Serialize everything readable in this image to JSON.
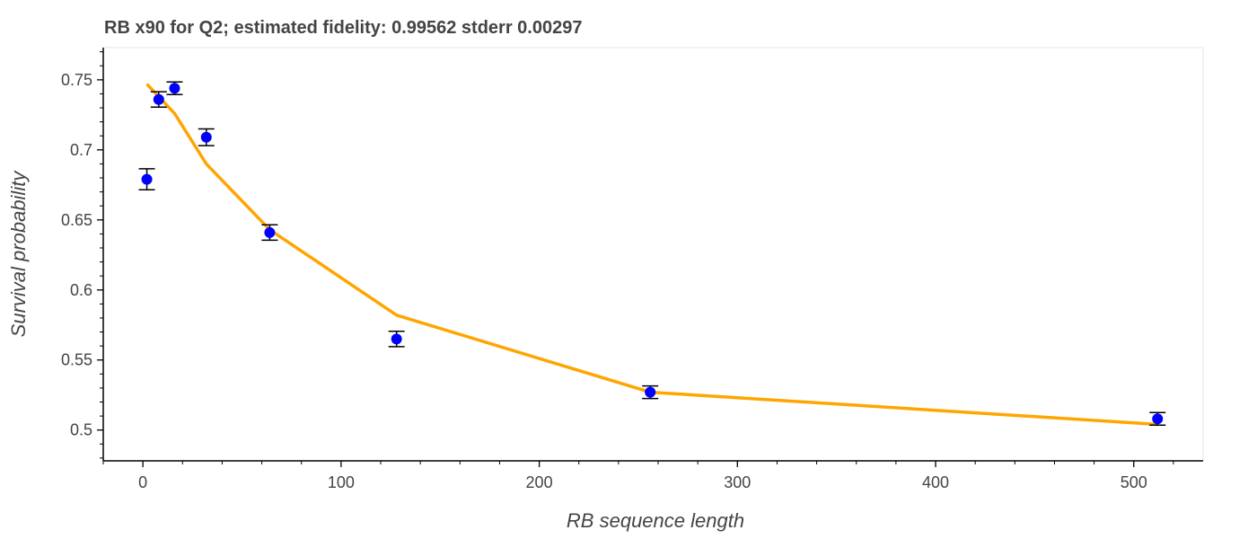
{
  "chart_data": {
    "type": "scatter",
    "title": "RB x90 for Q2; estimated fidelity: 0.99562 stderr 0.00297",
    "xlabel": "RB sequence length",
    "ylabel": "Survival probability",
    "xlim": [
      -20,
      535
    ],
    "ylim": [
      0.478,
      0.773
    ],
    "xticks": [
      0,
      100,
      200,
      300,
      400,
      500
    ],
    "xtick_labels": [
      "0",
      "100",
      "200",
      "300",
      "400",
      "500"
    ],
    "yticks": [
      0.5,
      0.55,
      0.6,
      0.65,
      0.7,
      0.75
    ],
    "ytick_labels": [
      "0.5",
      "0.55",
      "0.6",
      "0.65",
      "0.7",
      "0.75"
    ],
    "grid": false,
    "series": [
      {
        "kind": "scatter-errorbar",
        "color": "#0000ff",
        "points": [
          {
            "x": 2,
            "y": 0.679,
            "err": 0.0075
          },
          {
            "x": 8,
            "y": 0.736,
            "err": 0.0055
          },
          {
            "x": 16,
            "y": 0.744,
            "err": 0.0045
          },
          {
            "x": 32,
            "y": 0.709,
            "err": 0.006
          },
          {
            "x": 64,
            "y": 0.641,
            "err": 0.0055
          },
          {
            "x": 128,
            "y": 0.565,
            "err": 0.0055
          },
          {
            "x": 256,
            "y": 0.527,
            "err": 0.0045
          },
          {
            "x": 512,
            "y": 0.508,
            "err": 0.0045
          }
        ]
      },
      {
        "kind": "line",
        "color": "#ffa500",
        "points": [
          {
            "x": 2,
            "y": 0.747
          },
          {
            "x": 8,
            "y": 0.738
          },
          {
            "x": 16,
            "y": 0.726
          },
          {
            "x": 32,
            "y": 0.69
          },
          {
            "x": 64,
            "y": 0.643
          },
          {
            "x": 128,
            "y": 0.582
          },
          {
            "x": 256,
            "y": 0.527
          },
          {
            "x": 512,
            "y": 0.504
          }
        ]
      }
    ]
  }
}
